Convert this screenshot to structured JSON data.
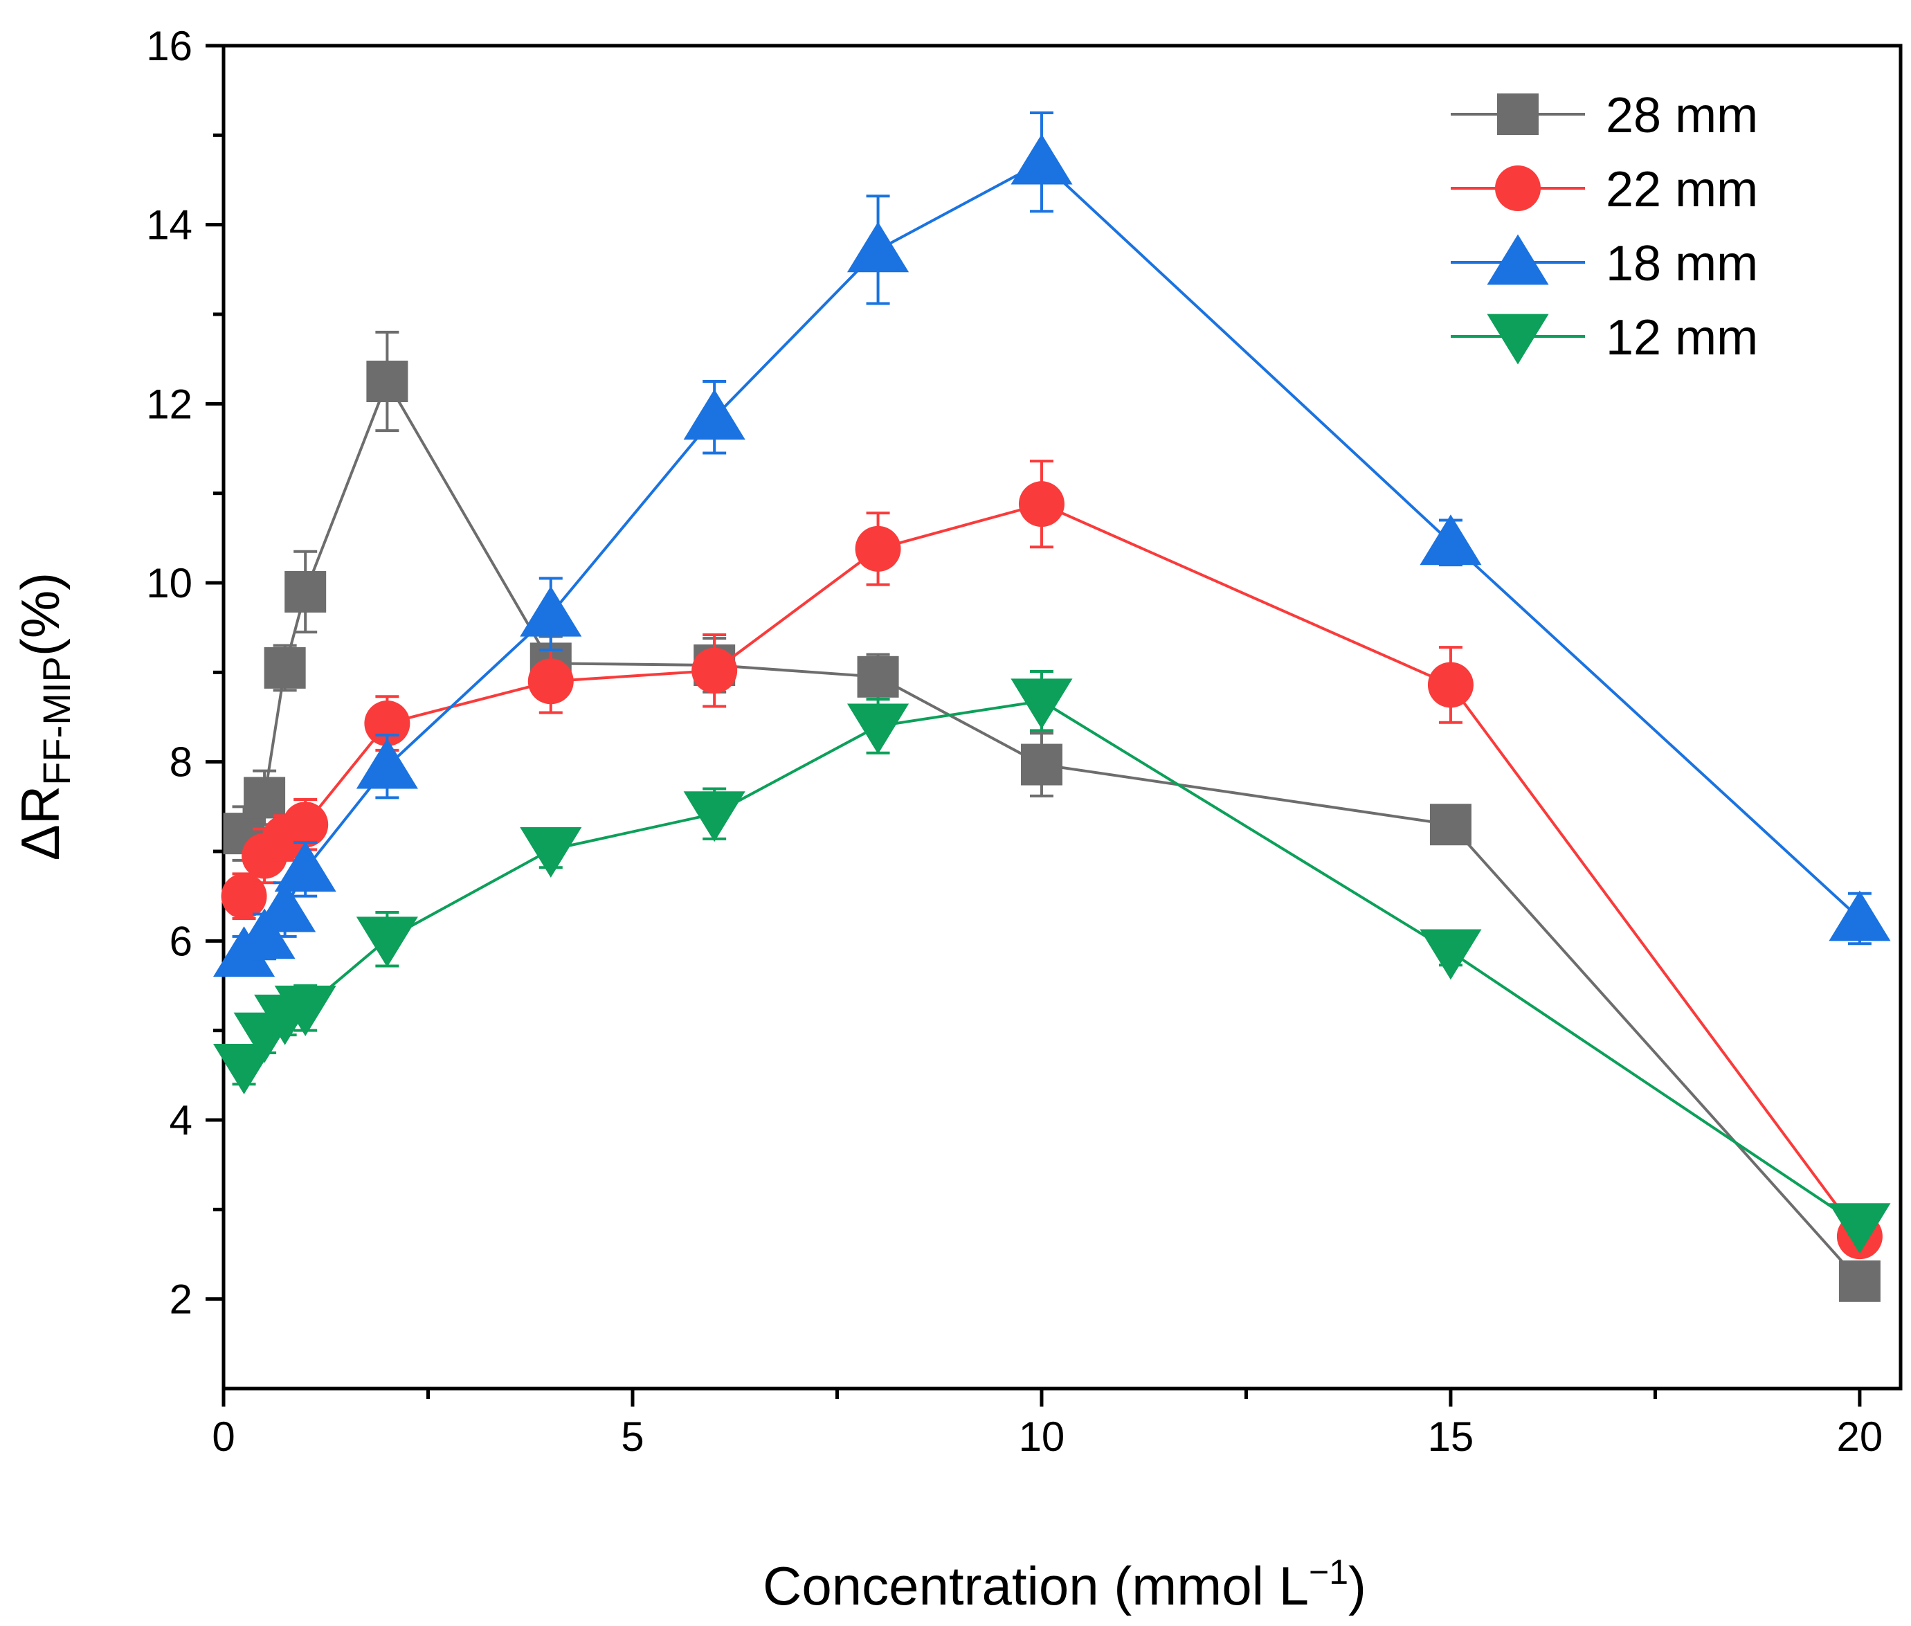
{
  "chart_data": {
    "type": "line",
    "title": "",
    "xlabel": "Concentration (mmol L",
    "xlabel_sup": "−1",
    "xlabel_close": ")",
    "ylabel_main": "ΔR",
    "ylabel_sub": "FF-MIP",
    "ylabel_unit": "(%)",
    "xlim": [
      0,
      20.5
    ],
    "ylim": [
      1,
      16
    ],
    "xticks": [
      0,
      5,
      10,
      15,
      20
    ],
    "yticks": [
      2,
      4,
      6,
      8,
      10,
      12,
      14,
      16
    ],
    "xtick_labels": [
      "0",
      "5",
      "10",
      "15",
      "20"
    ],
    "ytick_labels": [
      "2",
      "4",
      "6",
      "8",
      "10",
      "12",
      "14",
      "16"
    ],
    "legend_position": "top-right",
    "grid": false,
    "series": [
      {
        "name": "28 mm",
        "marker": "square",
        "color": "#6d6d6d",
        "x": [
          0.25,
          0.5,
          0.75,
          1,
          2,
          4,
          6,
          8,
          10,
          15,
          20
        ],
        "y": [
          7.2,
          7.6,
          9.05,
          9.9,
          12.25,
          9.1,
          9.08,
          8.95,
          7.97,
          7.3,
          2.2
        ],
        "err": [
          0.3,
          0.3,
          0.25,
          0.45,
          0.55,
          0.3,
          0.3,
          0.25,
          0.35,
          0.2,
          0.1
        ]
      },
      {
        "name": "22 mm",
        "marker": "circle",
        "color": "#fa3b3b",
        "x": [
          0.25,
          0.5,
          0.75,
          1,
          2,
          4,
          6,
          8,
          10,
          15,
          20
        ],
        "y": [
          6.5,
          6.95,
          7.15,
          7.3,
          8.43,
          8.9,
          9.02,
          10.38,
          10.88,
          8.86,
          2.7
        ],
        "err": [
          0.25,
          0.3,
          0.25,
          0.28,
          0.3,
          0.35,
          0.4,
          0.4,
          0.48,
          0.42,
          0.1
        ]
      },
      {
        "name": "18 mm",
        "marker": "triangle-up",
        "color": "#1a73e0",
        "x": [
          0.25,
          0.5,
          0.75,
          1,
          2,
          4,
          6,
          8,
          10,
          15,
          20
        ],
        "y": [
          5.85,
          6.05,
          6.35,
          6.8,
          7.95,
          9.65,
          11.85,
          13.72,
          14.7,
          10.45,
          6.25
        ],
        "err": [
          0.2,
          0.25,
          0.3,
          0.3,
          0.35,
          0.4,
          0.4,
          0.6,
          0.55,
          0.25,
          0.28
        ]
      },
      {
        "name": "12 mm",
        "marker": "triangle-down",
        "color": "#0ca05a",
        "x": [
          0.25,
          0.5,
          0.75,
          1,
          2,
          4,
          6,
          8,
          10,
          15,
          20
        ],
        "y": [
          4.6,
          4.95,
          5.15,
          5.25,
          6.02,
          7.02,
          7.42,
          8.4,
          8.68,
          5.88,
          2.82
        ],
        "err": [
          0.2,
          0.2,
          0.2,
          0.25,
          0.3,
          0.2,
          0.28,
          0.3,
          0.33,
          0.15,
          0.1
        ]
      }
    ]
  }
}
